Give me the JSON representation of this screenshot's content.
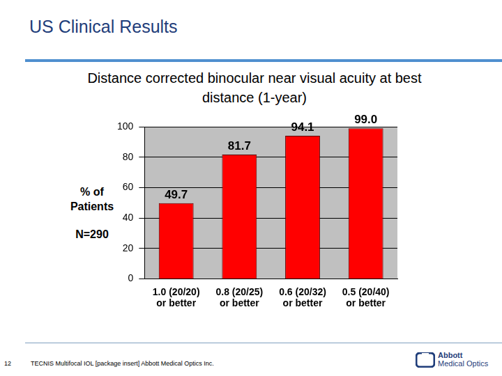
{
  "slide": {
    "title": "US Clinical Results",
    "page_number": 12,
    "footer": "TECNIS Multifocal IOL [package insert] Abbott Medical Optics Inc.",
    "logo": [
      "Abbott",
      "Medical Optics"
    ]
  },
  "chart_data": {
    "type": "bar",
    "title": "Distance corrected binocular near visual acuity at best distance (1-year)",
    "y_label": "% of Patients",
    "annotations": [
      "N=290"
    ],
    "categories": [
      [
        "1.0 (20/20)",
        "or better"
      ],
      [
        "0.8 (20/25)",
        "or better"
      ],
      [
        "0.6 (20/32)",
        "or better"
      ],
      [
        "0.5 (20/40)",
        "or better"
      ]
    ],
    "values": [
      49.7,
      81.7,
      94.1,
      99.0
    ],
    "value_labels": [
      "49.7",
      "81.7",
      "94.1",
      "99.0"
    ],
    "color": "#ff0000",
    "ylim": [
      0,
      100
    ],
    "yticks": [
      0,
      20,
      40,
      60,
      80,
      100
    ],
    "grid": true,
    "data_labels": true
  }
}
